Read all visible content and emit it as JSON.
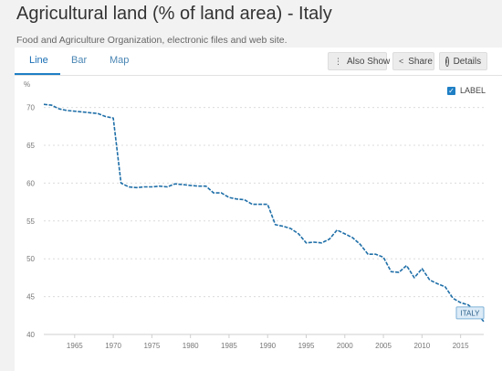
{
  "header": {
    "title": "Agricultural land (% of land area) - Italy",
    "subtitle": "Food and Agriculture Organization, electronic files and web site."
  },
  "tabs": [
    {
      "label": "Line",
      "active": true
    },
    {
      "label": "Bar",
      "active": false
    },
    {
      "label": "Map",
      "active": false
    }
  ],
  "toolbar": {
    "also_show_label": "Also Show",
    "share_label": "Share",
    "details_label": "Details"
  },
  "label_toggle": {
    "text": "LABEL",
    "checked": true
  },
  "colors": {
    "line": "#1f6fa8",
    "accent": "#1f7fc5",
    "grid": "#dcdcdc"
  },
  "chart_data": {
    "type": "line",
    "title": "Agricultural land (% of land area) - Italy",
    "ylabel": "%",
    "xlim": [
      1961,
      2018
    ],
    "ylim": [
      40,
      72
    ],
    "yticks": [
      40,
      45,
      50,
      55,
      60,
      65,
      70
    ],
    "xticks": [
      1965,
      1970,
      1975,
      1980,
      1985,
      1990,
      1995,
      2000,
      2005,
      2010,
      2015
    ],
    "grid": true,
    "series": [
      {
        "name": "ITALY",
        "x": [
          1961,
          1962,
          1963,
          1964,
          1965,
          1966,
          1967,
          1968,
          1969,
          1970,
          1971,
          1972,
          1973,
          1974,
          1975,
          1976,
          1977,
          1978,
          1979,
          1980,
          1981,
          1982,
          1983,
          1984,
          1985,
          1986,
          1987,
          1988,
          1989,
          1990,
          1991,
          1992,
          1993,
          1994,
          1995,
          1996,
          1997,
          1998,
          1999,
          2000,
          2001,
          2002,
          2003,
          2004,
          2005,
          2006,
          2007,
          2008,
          2009,
          2010,
          2011,
          2012,
          2013,
          2014,
          2015,
          2016,
          2017,
          2018
        ],
        "y": [
          70.4,
          70.3,
          69.8,
          69.6,
          69.5,
          69.4,
          69.3,
          69.2,
          68.8,
          68.6,
          60.0,
          59.5,
          59.4,
          59.5,
          59.5,
          59.6,
          59.5,
          59.9,
          59.8,
          59.7,
          59.6,
          59.6,
          58.7,
          58.7,
          58.1,
          57.9,
          57.8,
          57.2,
          57.2,
          57.2,
          54.5,
          54.3,
          54.0,
          53.3,
          52.1,
          52.2,
          52.1,
          52.6,
          53.8,
          53.3,
          52.8,
          51.9,
          50.6,
          50.6,
          50.2,
          48.3,
          48.2,
          49.1,
          47.5,
          48.7,
          47.2,
          46.7,
          46.3,
          44.8,
          44.2,
          43.9,
          43.0,
          41.7
        ]
      }
    ]
  }
}
